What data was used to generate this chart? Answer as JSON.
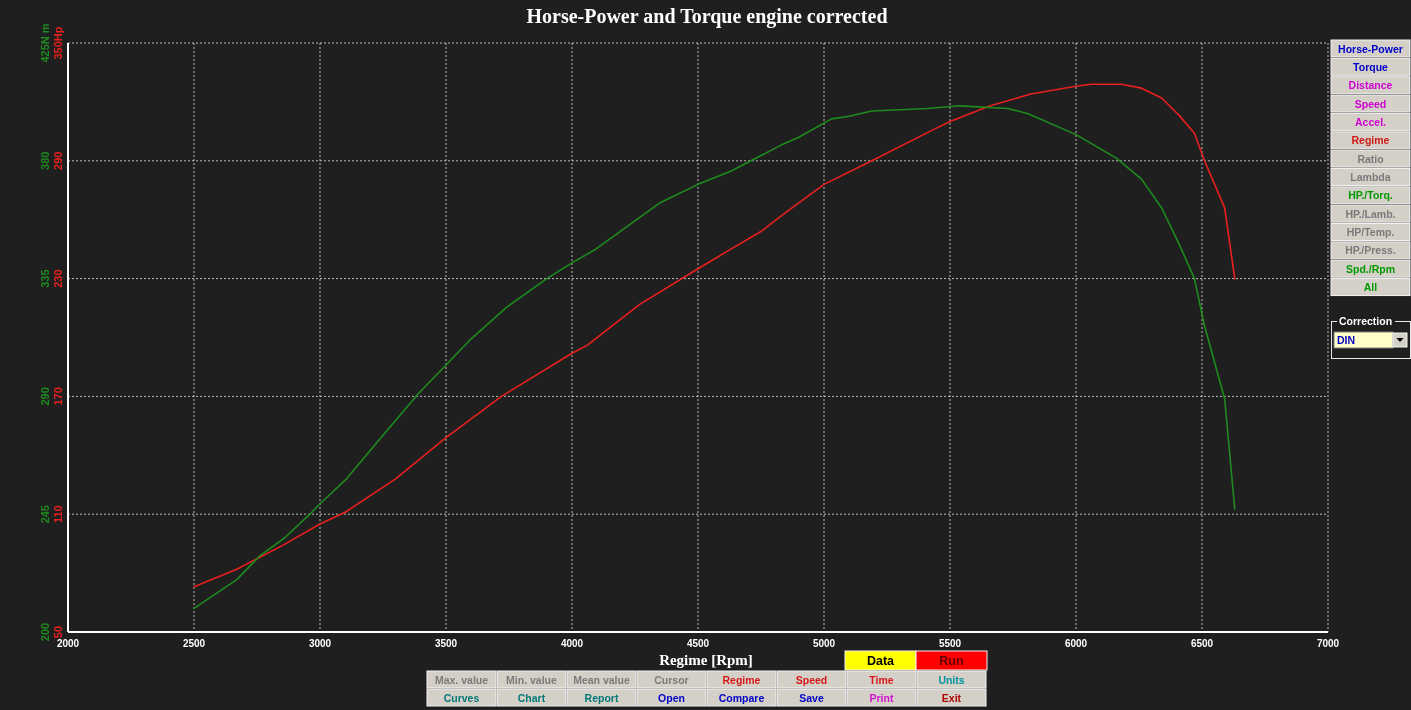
{
  "chart_data": {
    "type": "line",
    "title": "Horse-Power and Torque engine corrected",
    "xlabel": "Regime [Rpm]",
    "xlim": [
      2000,
      7000
    ],
    "xticks": [
      2000,
      2500,
      3000,
      3500,
      4000,
      4500,
      5000,
      5500,
      6000,
      6500,
      7000
    ],
    "ylim": [
      50,
      350
    ],
    "yticks": [
      50,
      110,
      170,
      230,
      290,
      {
        "value": 350,
        "label": "350Hp"
      }
    ],
    "y2lim": [
      200,
      425
    ],
    "y2ticks": [
      200,
      245,
      290,
      335,
      380,
      {
        "value": 425,
        "label": "425N m"
      }
    ],
    "grid": true,
    "line_style": "solid",
    "series": [
      {
        "color": "#e8201e",
        "x": [
          2500,
          2670,
          2850,
          3000,
          3100,
          3300,
          3500,
          3720,
          4000,
          4060,
          4270,
          4500,
          4630,
          4750,
          4830,
          5000,
          5190,
          5420,
          5500,
          5660,
          5820,
          6000,
          6060,
          6180,
          6260,
          6340,
          6410,
          6470,
          6510,
          6590,
          6630
        ],
        "values": [
          73,
          82,
          94,
          105,
          111,
          128,
          149,
          170,
          192,
          196,
          217,
          235,
          245,
          254,
          262,
          278,
          290,
          305,
          310,
          318,
          324,
          328,
          329,
          329,
          327,
          322,
          313,
          304,
          290,
          266,
          230
        ]
      },
      {
        "color": "#1e8b1e",
        "axis": "y2",
        "x": [
          2500,
          2670,
          2760,
          2860,
          2960,
          3000,
          3100,
          3240,
          3390,
          3500,
          3600,
          3740,
          3900,
          4000,
          4090,
          4350,
          4500,
          4630,
          4750,
          4830,
          4900,
          5030,
          5100,
          5190,
          5410,
          5540,
          5730,
          5810,
          6000,
          6160,
          6260,
          6340,
          6410,
          6470,
          6510,
          6590,
          6630
        ],
        "values": [
          209,
          220,
          229,
          236,
          245,
          249,
          258,
          274,
          291,
          302,
          312,
          324,
          335,
          341,
          346,
          364,
          371,
          376,
          382,
          386,
          389,
          396,
          397,
          399,
          400,
          401,
          400,
          398,
          390,
          381,
          373,
          362,
          348,
          335,
          317,
          289,
          247
        ]
      }
    ],
    "annotations": [
      "Horse-Power",
      "Torque",
      "Distance",
      "Speed",
      "Accel.",
      "Regime",
      "Ratio",
      "Lambda",
      "HP./Torq.",
      "HP./Lamb.",
      "HP/Temp.",
      "HP./Press.",
      "Spd./Rpm",
      "All",
      "Correction",
      "DIN",
      "Data",
      "Run",
      "Max. value",
      "Min. value",
      "Mean value",
      "Cursor",
      "Regime",
      "Speed",
      "Time",
      "Units",
      "Curves",
      "Chart",
      "Report",
      "Open",
      "Compare",
      "Save",
      "Print",
      "Exit"
    ]
  }
}
